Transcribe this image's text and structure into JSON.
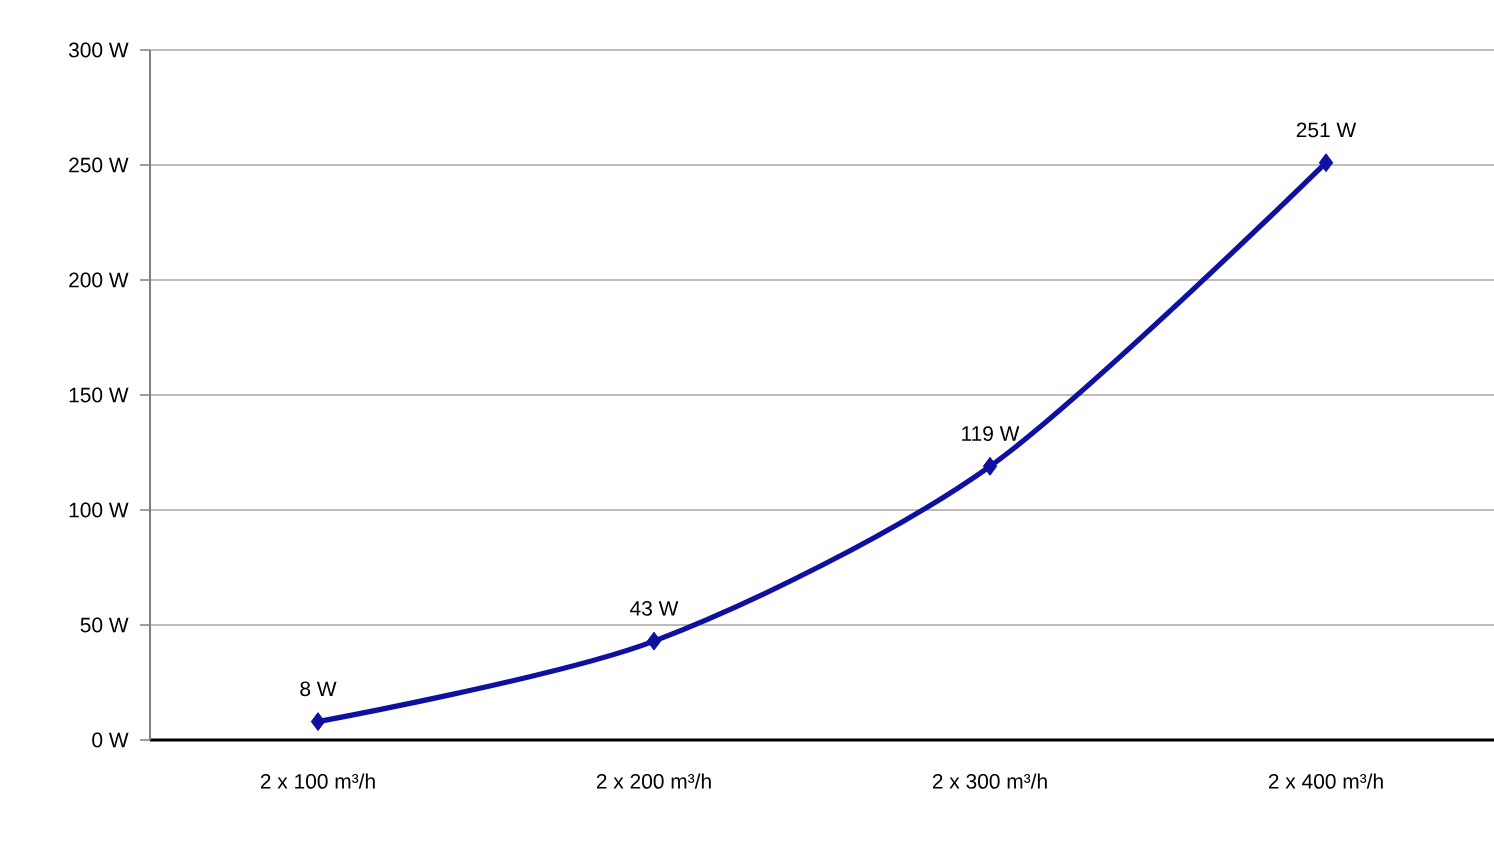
{
  "chart_data": {
    "type": "line",
    "categories": [
      "2 x 100 m³/h",
      "2 x 200 m³/h",
      "2 x 300 m³/h",
      "2 x 400 m³/h"
    ],
    "values": [
      8,
      43,
      119,
      251
    ],
    "value_labels": [
      "8 W",
      "43 W",
      "119 W",
      "251 W"
    ],
    "color": "#1010a0",
    "marker": "diamond",
    "line_style": "solid",
    "grid": "y",
    "ylim": [
      0,
      300
    ],
    "yticks": [
      {
        "value": 0,
        "label": "0 W"
      },
      {
        "value": 50,
        "label": "50 W"
      },
      {
        "value": 100,
        "label": "100 W"
      },
      {
        "value": 150,
        "label": "150 W"
      },
      {
        "value": 200,
        "label": "200 W"
      },
      {
        "value": 250,
        "label": "250 W"
      },
      {
        "value": 300,
        "label": "300 W"
      }
    ]
  }
}
